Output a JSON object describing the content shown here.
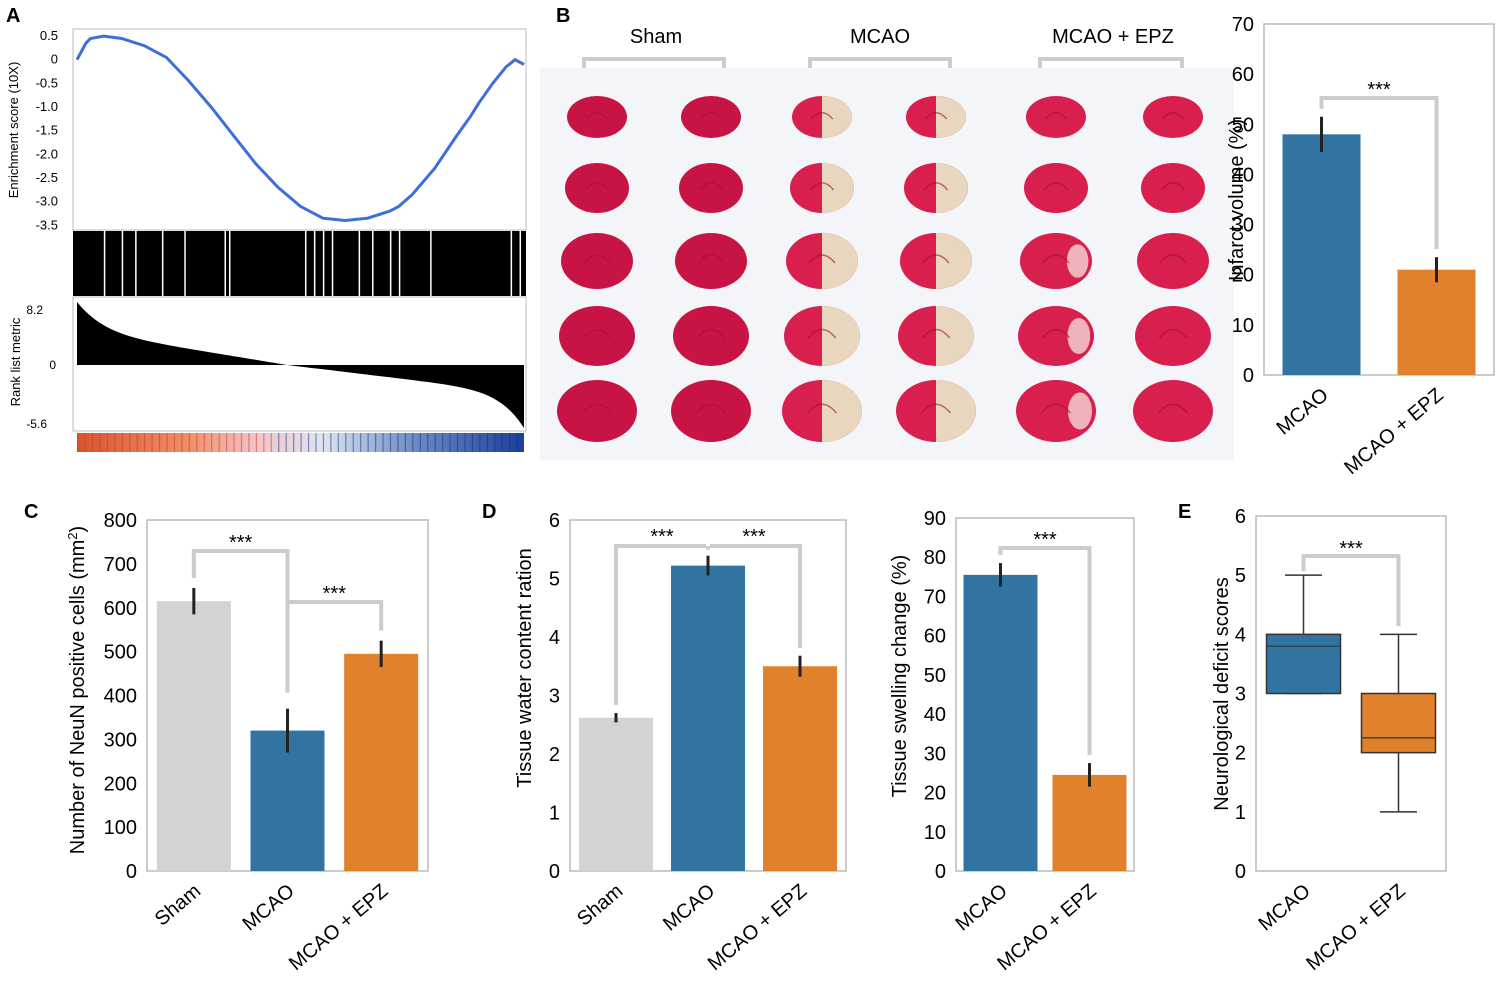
{
  "panel_labels": {
    "a": "A",
    "b": "B",
    "c": "C",
    "d": "D",
    "e": "E"
  },
  "colors": {
    "sham": "#d3d3d3",
    "mcao": "#3274a1",
    "epz": "#e1812c",
    "gsea_line": "#3d6fdb",
    "frame": "#bbbbbb",
    "bracket": "#cccccc",
    "tissue_bg": "#f4f5f9",
    "healthy": "#d81f4e",
    "infarct": "#e9d6bf"
  },
  "chart_data": [
    {
      "id": "A",
      "type": "line",
      "subtype": "gsea-enrichment",
      "ylabel": "Enrichment score (10X)",
      "yticks": [
        "0.5",
        "0",
        "-0.5",
        "-1.0",
        "-1.5",
        "-2.0",
        "-2.5",
        "-3.0",
        "-3.5"
      ],
      "ylim": [
        -3.6,
        0.65
      ],
      "x": [
        0,
        0.02,
        0.03,
        0.06,
        0.1,
        0.15,
        0.2,
        0.25,
        0.3,
        0.35,
        0.4,
        0.45,
        0.5,
        0.55,
        0.6,
        0.65,
        0.7,
        0.72,
        0.75,
        0.8,
        0.85,
        0.88,
        0.9,
        0.93,
        0.96,
        0.98,
        1.0
      ],
      "y": [
        0.0,
        0.35,
        0.45,
        0.5,
        0.45,
        0.3,
        0.05,
        -0.45,
        -1.0,
        -1.6,
        -2.2,
        -2.7,
        -3.1,
        -3.35,
        -3.4,
        -3.35,
        -3.2,
        -3.1,
        -2.85,
        -2.3,
        -1.6,
        -1.2,
        -0.9,
        -0.5,
        -0.15,
        0.0,
        -0.1
      ],
      "rank_metric": {
        "ylabel": "Rank list metric",
        "ticks": [
          "8.2",
          "0",
          "-5.6"
        ],
        "max": 8.2,
        "min": -5.6,
        "zero_cross": 0.47
      }
    },
    {
      "id": "B",
      "type": "bar",
      "categories": [
        "MCAO",
        "MCAO + EPZ"
      ],
      "values": [
        48,
        21
      ],
      "errors": [
        3.5,
        2.5
      ],
      "ylabel": "Infarct volume (%)",
      "ylim": [
        0,
        70
      ],
      "yticks": [
        0,
        10,
        20,
        30,
        40,
        50,
        60,
        70
      ],
      "significance": [
        {
          "from": 0,
          "to": 1,
          "label": "***"
        }
      ],
      "image_groups": [
        "Sham",
        "MCAO",
        "MCAO + EPZ"
      ]
    },
    {
      "id": "C",
      "type": "bar",
      "categories": [
        "Sham",
        "MCAO",
        "MCAO + EPZ"
      ],
      "values": [
        615,
        320,
        495
      ],
      "errors": [
        30,
        50,
        30
      ],
      "ylabel_main": "Number of NeuN positive cells (mm",
      "ylabel_sup": "2",
      "ylabel_end": ")",
      "ylim": [
        0,
        800
      ],
      "yticks": [
        0,
        100,
        200,
        300,
        400,
        500,
        600,
        700,
        800
      ],
      "significance": [
        {
          "from": 0,
          "to": 1,
          "label": "***"
        },
        {
          "from": 1,
          "to": 2,
          "label": "***"
        }
      ]
    },
    {
      "id": "D1",
      "type": "bar",
      "categories": [
        "Sham",
        "MCAO",
        "MCAO + EPZ"
      ],
      "values": [
        2.62,
        5.22,
        3.5
      ],
      "errors": [
        0.08,
        0.17,
        0.18
      ],
      "ylabel": "Tissue water content ration",
      "ylim": [
        0,
        6
      ],
      "yticks": [
        0,
        1,
        2,
        3,
        4,
        5,
        6
      ],
      "significance": [
        {
          "from": 0,
          "to": 1,
          "label": "***"
        },
        {
          "from": 1,
          "to": 2,
          "label": "***"
        }
      ]
    },
    {
      "id": "D2",
      "type": "bar",
      "categories": [
        "MCAO",
        "MCAO + EPZ"
      ],
      "values": [
        75.5,
        24.5
      ],
      "errors": [
        3,
        3
      ],
      "ylabel": "Tissue swelling change (%)",
      "ylim": [
        0,
        90
      ],
      "yticks": [
        0,
        10,
        20,
        30,
        40,
        50,
        60,
        70,
        80,
        90
      ],
      "significance": [
        {
          "from": 0,
          "to": 1,
          "label": "***"
        }
      ]
    },
    {
      "id": "E",
      "type": "box",
      "categories": [
        "MCAO",
        "MCAO + EPZ"
      ],
      "boxes": [
        {
          "whisker_low": 3,
          "q1": 3,
          "median": 3.8,
          "q3": 4,
          "whisker_high": 5
        },
        {
          "whisker_low": 1,
          "q1": 2,
          "median": 2.25,
          "q3": 3,
          "whisker_high": 4
        }
      ],
      "ylabel": "Neurological deficit scores",
      "ylim": [
        0,
        6
      ],
      "yticks": [
        0,
        1,
        2,
        3,
        4,
        5,
        6
      ],
      "significance": [
        {
          "from": 0,
          "to": 1,
          "label": "***"
        }
      ]
    }
  ]
}
